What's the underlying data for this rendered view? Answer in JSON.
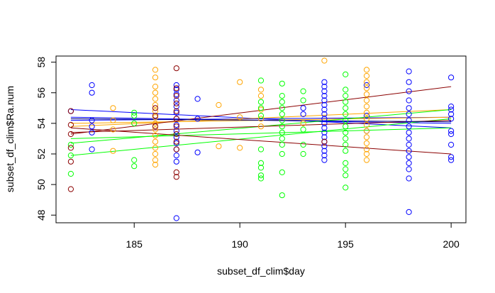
{
  "chart_data": {
    "type": "scatter",
    "xlabel": "subset_df_clim$day",
    "ylabel": "subset_df_clim$Ra.num",
    "xlim": [
      181.3,
      200.7
    ],
    "ylim": [
      47.5,
      58.4
    ],
    "x_ticks": [
      185,
      190,
      195,
      200
    ],
    "y_ticks": [
      48,
      50,
      52,
      54,
      56,
      58
    ],
    "grid": false,
    "legend": "none",
    "marker": "open-circle",
    "colors": {
      "blue": "#0000ff",
      "orange": "#ffa500",
      "green": "#00ff00",
      "darkred": "#8b0000"
    },
    "series": [
      {
        "color": "#0000ff",
        "points": [
          [
            182,
            54.8
          ],
          [
            183,
            56.5
          ],
          [
            183,
            56.0
          ],
          [
            183,
            54.2
          ],
          [
            183,
            53.8
          ],
          [
            183,
            53.4
          ],
          [
            183,
            52.3
          ],
          [
            187,
            56.5
          ],
          [
            187,
            56.2
          ],
          [
            187,
            55.9
          ],
          [
            187,
            55.5
          ],
          [
            187,
            55.1
          ],
          [
            187,
            54.7
          ],
          [
            187,
            54.3
          ],
          [
            187,
            53.9
          ],
          [
            187,
            53.5
          ],
          [
            187,
            53.1
          ],
          [
            187,
            52.7
          ],
          [
            187,
            52.3
          ],
          [
            187,
            51.9
          ],
          [
            187,
            51.5
          ],
          [
            187,
            47.8
          ],
          [
            188,
            55.6
          ],
          [
            188,
            54.3
          ],
          [
            188,
            52.1
          ],
          [
            193,
            55.0
          ],
          [
            193,
            54.6
          ],
          [
            194,
            56.7
          ],
          [
            194,
            56.4
          ],
          [
            194,
            56.1
          ],
          [
            194,
            55.8
          ],
          [
            194,
            55.5
          ],
          [
            194,
            55.2
          ],
          [
            194,
            54.9
          ],
          [
            194,
            54.6
          ],
          [
            194,
            54.3
          ],
          [
            194,
            54.0
          ],
          [
            194,
            53.7
          ],
          [
            194,
            53.4
          ],
          [
            194,
            53.1
          ],
          [
            194,
            52.8
          ],
          [
            194,
            52.5
          ],
          [
            194,
            52.2
          ],
          [
            194,
            51.9
          ],
          [
            194,
            51.6
          ],
          [
            196,
            56.5
          ],
          [
            196,
            54.5
          ],
          [
            196,
            53.5
          ],
          [
            198,
            57.4
          ],
          [
            198,
            56.7
          ],
          [
            198,
            56.1
          ],
          [
            198,
            55.5
          ],
          [
            198,
            55.0
          ],
          [
            198,
            54.6
          ],
          [
            198,
            54.2
          ],
          [
            198,
            53.8
          ],
          [
            198,
            53.4
          ],
          [
            198,
            53.0
          ],
          [
            198,
            52.6
          ],
          [
            198,
            52.2
          ],
          [
            198,
            51.8
          ],
          [
            198,
            51.4
          ],
          [
            198,
            51.0
          ],
          [
            198,
            50.4
          ],
          [
            198,
            48.2
          ],
          [
            200,
            57.0
          ],
          [
            200,
            55.1
          ],
          [
            200,
            54.9
          ],
          [
            200,
            54.6
          ],
          [
            200,
            54.3
          ],
          [
            200,
            53.5
          ],
          [
            200,
            53.3
          ],
          [
            200,
            52.6
          ],
          [
            200,
            51.8
          ],
          [
            200,
            51.6
          ]
        ]
      },
      {
        "color": "#ffa500",
        "points": [
          [
            184,
            55.0
          ],
          [
            184,
            54.2
          ],
          [
            184,
            53.6
          ],
          [
            184,
            52.2
          ],
          [
            186,
            57.5
          ],
          [
            186,
            57.0
          ],
          [
            186,
            56.4
          ],
          [
            186,
            56.0
          ],
          [
            186,
            55.6
          ],
          [
            186,
            55.2
          ],
          [
            186,
            54.8
          ],
          [
            186,
            54.4
          ],
          [
            186,
            54.0
          ],
          [
            186,
            53.6
          ],
          [
            186,
            53.2
          ],
          [
            186,
            52.8
          ],
          [
            186,
            52.4
          ],
          [
            186,
            52.0
          ],
          [
            186,
            51.6
          ],
          [
            186,
            51.3
          ],
          [
            189,
            55.2
          ],
          [
            189,
            52.5
          ],
          [
            190,
            56.7
          ],
          [
            190,
            54.4
          ],
          [
            190,
            52.4
          ],
          [
            191,
            56.2
          ],
          [
            191,
            55.8
          ],
          [
            191,
            54.9
          ],
          [
            191,
            54.3
          ],
          [
            191,
            53.8
          ],
          [
            193,
            54.0
          ],
          [
            194,
            58.1
          ],
          [
            196,
            57.5
          ],
          [
            196,
            57.1
          ],
          [
            196,
            56.7
          ],
          [
            196,
            56.3
          ],
          [
            196,
            55.9
          ],
          [
            196,
            55.5
          ],
          [
            196,
            55.1
          ],
          [
            196,
            54.7
          ],
          [
            196,
            54.3
          ],
          [
            196,
            53.9
          ],
          [
            196,
            53.5
          ],
          [
            196,
            53.1
          ],
          [
            196,
            52.7
          ],
          [
            196,
            52.3
          ],
          [
            196,
            52.0
          ],
          [
            196,
            51.6
          ]
        ]
      },
      {
        "color": "#00ff00",
        "points": [
          [
            182,
            52.6
          ],
          [
            182,
            51.9
          ],
          [
            182,
            50.7
          ],
          [
            185,
            54.7
          ],
          [
            185,
            54.5
          ],
          [
            185,
            54.0
          ],
          [
            185,
            51.6
          ],
          [
            185,
            51.2
          ],
          [
            191,
            56.8
          ],
          [
            191,
            55.4
          ],
          [
            191,
            55.0
          ],
          [
            191,
            54.5
          ],
          [
            191,
            52.3
          ],
          [
            191,
            51.4
          ],
          [
            191,
            51.1
          ],
          [
            191,
            50.6
          ],
          [
            191,
            50.4
          ],
          [
            192,
            56.6
          ],
          [
            192,
            55.8
          ],
          [
            192,
            55.4
          ],
          [
            192,
            55.0
          ],
          [
            192,
            54.6
          ],
          [
            192,
            54.2
          ],
          [
            192,
            53.8
          ],
          [
            192,
            53.4
          ],
          [
            192,
            53.0
          ],
          [
            192,
            52.6
          ],
          [
            192,
            52.0
          ],
          [
            192,
            50.8
          ],
          [
            192,
            49.3
          ],
          [
            193,
            56.1
          ],
          [
            193,
            55.5
          ],
          [
            193,
            53.6
          ],
          [
            193,
            52.6
          ],
          [
            193,
            52.0
          ],
          [
            195,
            57.2
          ],
          [
            195,
            56.2
          ],
          [
            195,
            55.8
          ],
          [
            195,
            55.4
          ],
          [
            195,
            55.0
          ],
          [
            195,
            54.6
          ],
          [
            195,
            54.2
          ],
          [
            195,
            53.8
          ],
          [
            195,
            53.4
          ],
          [
            195,
            53.0
          ],
          [
            195,
            52.6
          ],
          [
            195,
            52.2
          ],
          [
            195,
            51.4
          ],
          [
            195,
            51.0
          ],
          [
            195,
            50.6
          ],
          [
            195,
            49.8
          ]
        ]
      },
      {
        "color": "#8b0000",
        "points": [
          [
            182,
            54.8
          ],
          [
            182,
            53.9
          ],
          [
            182,
            53.3
          ],
          [
            182,
            52.4
          ],
          [
            182,
            51.5
          ],
          [
            182,
            49.7
          ],
          [
            186,
            55.0
          ],
          [
            186,
            54.5
          ],
          [
            186,
            53.8
          ],
          [
            187,
            57.6
          ],
          [
            187,
            56.3
          ],
          [
            187,
            55.8
          ],
          [
            187,
            55.3
          ],
          [
            187,
            54.8
          ],
          [
            187,
            54.3
          ],
          [
            187,
            53.8
          ],
          [
            187,
            53.3
          ],
          [
            187,
            52.8
          ],
          [
            187,
            52.3
          ],
          [
            187,
            50.8
          ],
          [
            187,
            50.5
          ],
          [
            194,
            52.8
          ]
        ]
      }
    ],
    "fit_lines": [
      {
        "color": "#0000ff",
        "x": [
          182,
          200
        ],
        "y": [
          54.9,
          53.7
        ]
      },
      {
        "color": "#0000ff",
        "x": [
          182,
          200
        ],
        "y": [
          54.4,
          54.0
        ]
      },
      {
        "color": "#0000ff",
        "x": [
          182,
          200
        ],
        "y": [
          54.2,
          54.4
        ]
      },
      {
        "color": "#ffa500",
        "x": [
          182,
          200
        ],
        "y": [
          53.8,
          54.9
        ]
      },
      {
        "color": "#ffa500",
        "x": [
          182,
          200
        ],
        "y": [
          54.0,
          54.4
        ]
      },
      {
        "color": "#00ff00",
        "x": [
          182,
          200
        ],
        "y": [
          52.7,
          54.9
        ]
      },
      {
        "color": "#00ff00",
        "x": [
          182,
          200
        ],
        "y": [
          51.9,
          54.3
        ]
      },
      {
        "color": "#00ff00",
        "x": [
          182,
          200
        ],
        "y": [
          53.0,
          53.7
        ]
      },
      {
        "color": "#8b0000",
        "x": [
          182,
          200
        ],
        "y": [
          53.3,
          56.4
        ]
      },
      {
        "color": "#8b0000",
        "x": [
          182,
          200
        ],
        "y": [
          53.7,
          52.0
        ]
      },
      {
        "color": "#8b0000",
        "x": [
          182,
          200
        ],
        "y": [
          53.4,
          54.2
        ]
      },
      {
        "color": "#000080",
        "x": [
          182,
          200
        ],
        "y": [
          54.3,
          54.1
        ]
      }
    ]
  }
}
